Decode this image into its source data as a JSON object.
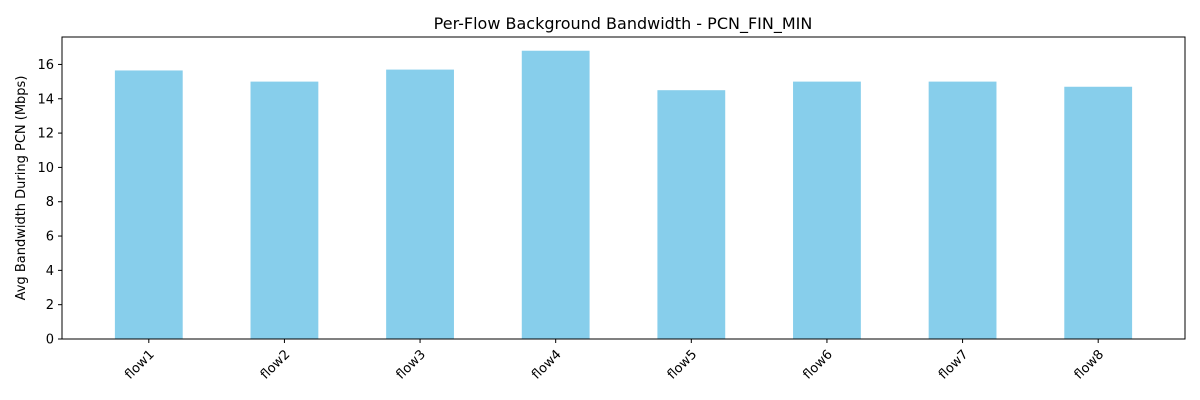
{
  "chart_data": {
    "type": "bar",
    "title": "Per-Flow Background Bandwidth - PCN_FIN_MIN",
    "xlabel": "",
    "ylabel": "Avg Bandwidth During PCN (Mbps)",
    "categories": [
      "flow1",
      "flow2",
      "flow3",
      "flow4",
      "flow5",
      "flow6",
      "flow7",
      "flow8"
    ],
    "values": [
      15.65,
      15.0,
      15.7,
      16.8,
      14.5,
      15.0,
      15.0,
      14.7
    ],
    "ylim": [
      0,
      17.6
    ],
    "yticks": [
      0,
      2,
      4,
      6,
      8,
      10,
      12,
      14,
      16
    ],
    "yticklabels": [
      "0",
      "2",
      "4",
      "6",
      "8",
      "10",
      "12",
      "14",
      "16"
    ],
    "xtick_rotation_deg": 45,
    "grid": false,
    "legend": "none",
    "bar_color": "#87ceeb"
  }
}
